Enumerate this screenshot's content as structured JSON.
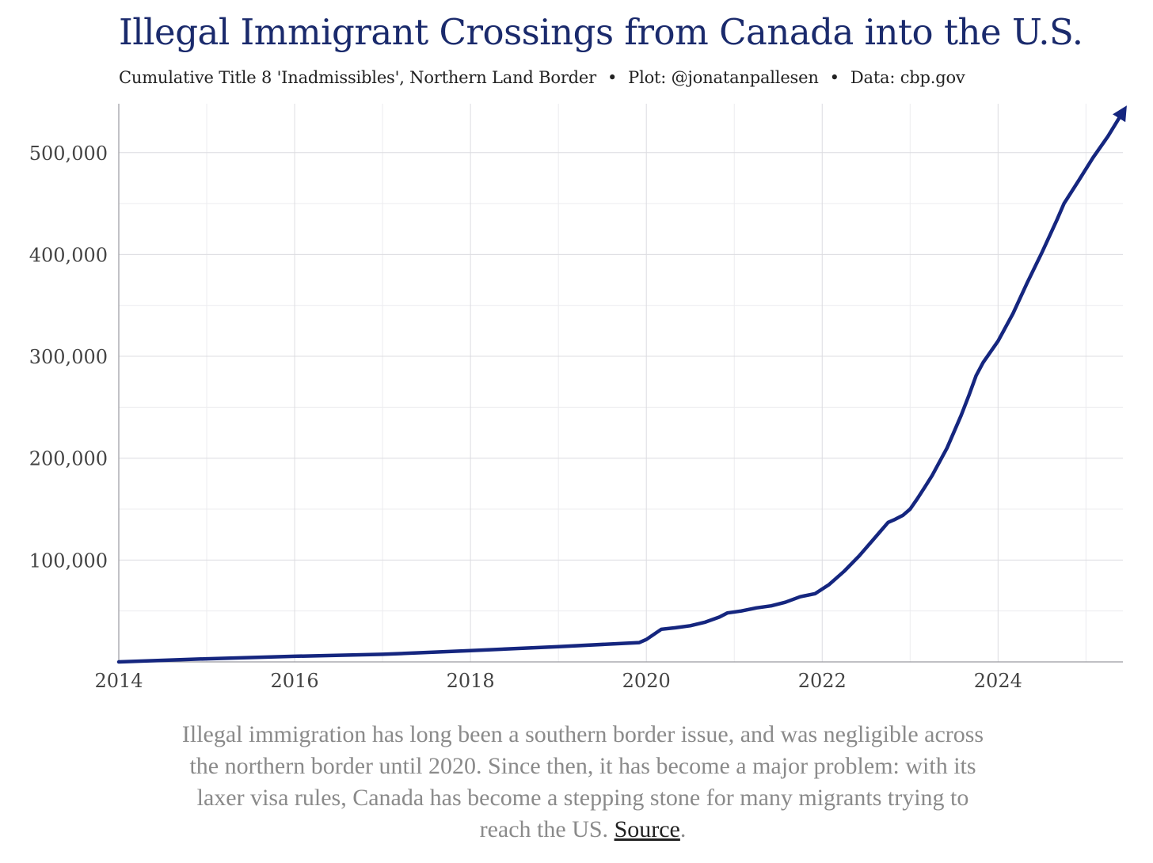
{
  "chart_data": {
    "type": "line",
    "title": "Illegal Immigrant Crossings from Canada into the U.S.",
    "subtitle_parts": [
      "Cumulative Title 8 'Inadmissibles', Northern Land Border",
      "Plot: @jonatanpallesen",
      "Data: cbp.gov"
    ],
    "xlabel": "",
    "ylabel": "",
    "xlim": [
      2014,
      2025.42
    ],
    "ylim": [
      0,
      548000
    ],
    "x_ticks": [
      2014,
      2016,
      2018,
      2020,
      2022,
      2024
    ],
    "x_tick_labels": [
      "2014",
      "2016",
      "2018",
      "2020",
      "2022",
      "2024"
    ],
    "y_ticks": [
      100000,
      200000,
      300000,
      400000,
      500000
    ],
    "y_tick_labels": [
      "100,000",
      "200,000",
      "300,000",
      "400,000",
      "500,000"
    ],
    "grid": true,
    "line_color": "#15267f",
    "series": [
      {
        "x": [
          2014.0,
          2015.0,
          2016.0,
          2017.0,
          2018.0,
          2019.0,
          2019.92,
          2020.0,
          2020.17,
          2020.33,
          2020.5,
          2020.67,
          2020.83,
          2020.92,
          2021.08,
          2021.25,
          2021.42,
          2021.58,
          2021.75,
          2021.92,
          2022.08,
          2022.25,
          2022.42,
          2022.58,
          2022.67,
          2022.75,
          2022.83,
          2022.92,
          2023.0,
          2023.08,
          2023.17,
          2023.25,
          2023.42,
          2023.58,
          2023.67,
          2023.75,
          2023.83,
          2024.0,
          2024.17,
          2024.33,
          2024.5,
          2024.67,
          2024.75,
          2024.92,
          2025.08,
          2025.25,
          2025.42
        ],
        "y": [
          0,
          3000,
          5500,
          7500,
          11000,
          15000,
          19000,
          22000,
          32000,
          33500,
          35500,
          39000,
          44000,
          48000,
          50000,
          53000,
          55000,
          58500,
          64000,
          67000,
          76000,
          89000,
          104000,
          120000,
          129000,
          137000,
          140000,
          144000,
          150000,
          160000,
          172000,
          183000,
          210000,
          242000,
          262000,
          281000,
          294000,
          315000,
          342000,
          372000,
          402000,
          434000,
          450000,
          473000,
          495000,
          516000,
          540000
        ]
      }
    ]
  },
  "caption": {
    "text": "Illegal immigration has long been a southern border issue, and was negligible across the northern border until 2020. Since then, it has become a major problem: with its laxer visa rules, Canada has become a stepping stone for many migrants trying to reach the US. ",
    "link_text": "Source",
    "end": "."
  }
}
